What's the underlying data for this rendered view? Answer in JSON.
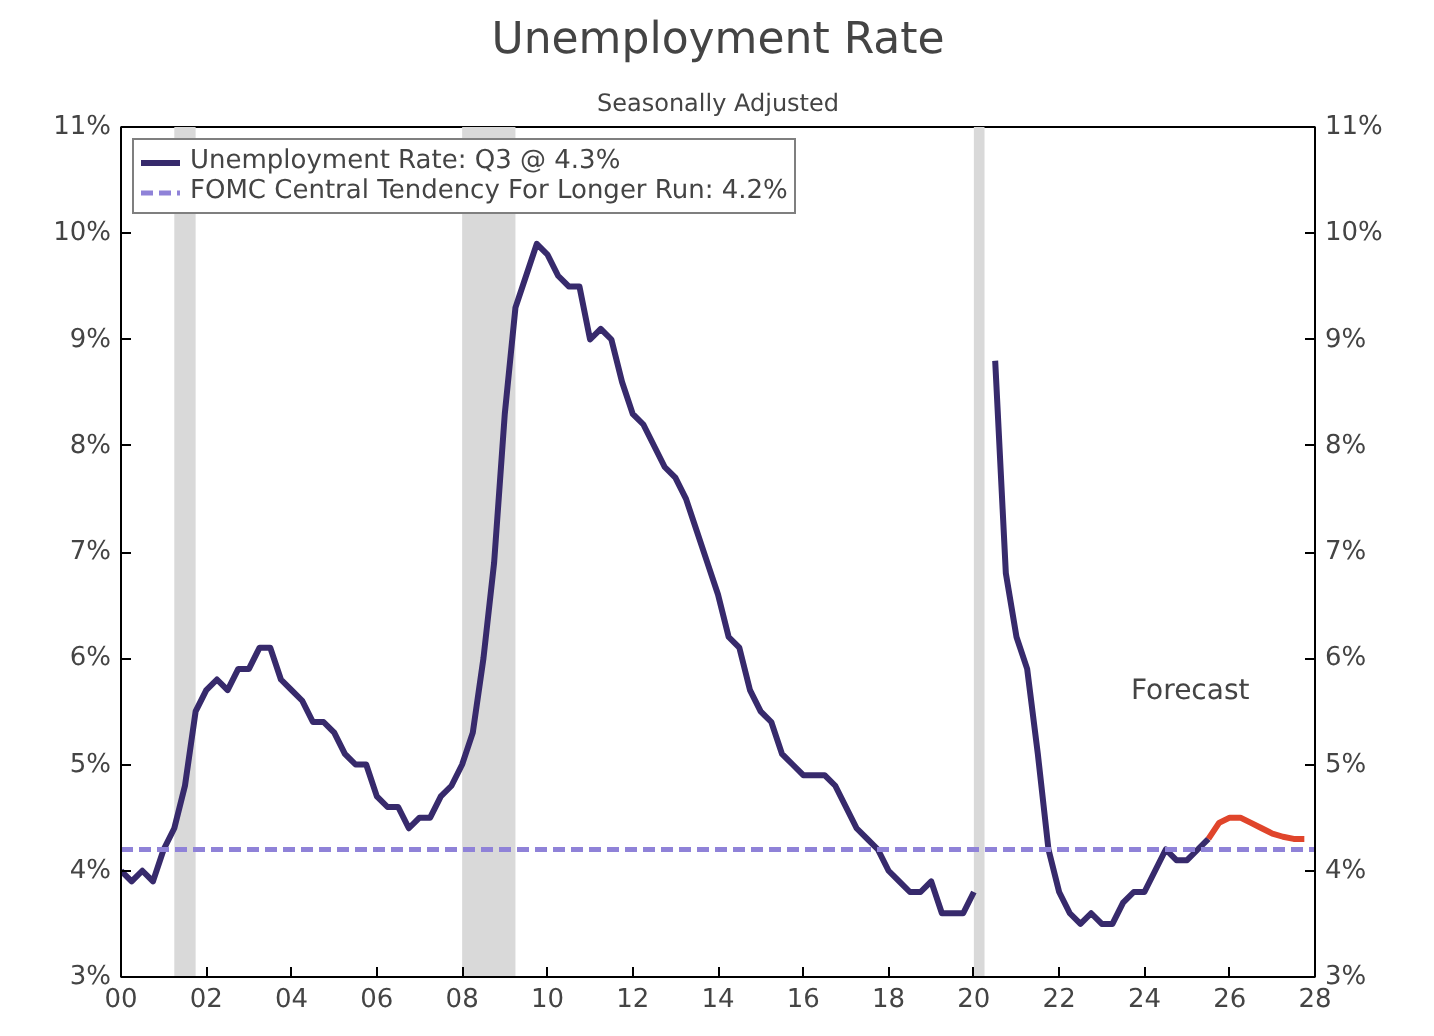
{
  "chart_data": {
    "type": "line",
    "title": "Unemployment Rate",
    "subtitle": "Seasonally Adjusted",
    "xlim": [
      0,
      28
    ],
    "xticks": [
      {
        "value": 0,
        "label": "00"
      },
      {
        "value": 2,
        "label": "02"
      },
      {
        "value": 4,
        "label": "04"
      },
      {
        "value": 6,
        "label": "06"
      },
      {
        "value": 8,
        "label": "08"
      },
      {
        "value": 10,
        "label": "10"
      },
      {
        "value": 12,
        "label": "12"
      },
      {
        "value": 14,
        "label": "14"
      },
      {
        "value": 16,
        "label": "16"
      },
      {
        "value": 18,
        "label": "18"
      },
      {
        "value": 20,
        "label": "20"
      },
      {
        "value": 22,
        "label": "22"
      },
      {
        "value": 24,
        "label": "24"
      },
      {
        "value": 26,
        "label": "26"
      },
      {
        "value": 28,
        "label": "28"
      }
    ],
    "ylim": [
      3,
      11
    ],
    "yticks": [
      {
        "value": 3,
        "label": "3%"
      },
      {
        "value": 4,
        "label": "4%"
      },
      {
        "value": 5,
        "label": "5%"
      },
      {
        "value": 6,
        "label": "6%"
      },
      {
        "value": 7,
        "label": "7%"
      },
      {
        "value": 8,
        "label": "8%"
      },
      {
        "value": 9,
        "label": "9%"
      },
      {
        "value": 10,
        "label": "10%"
      },
      {
        "value": 11,
        "label": "11%"
      }
    ],
    "y2lim": [
      3,
      11
    ],
    "y2ticks": [
      {
        "value": 3,
        "label": "3%"
      },
      {
        "value": 4,
        "label": "4%"
      },
      {
        "value": 5,
        "label": "5%"
      },
      {
        "value": 6,
        "label": "6%"
      },
      {
        "value": 7,
        "label": "7%"
      },
      {
        "value": 8,
        "label": "8%"
      },
      {
        "value": 9,
        "label": "9%"
      },
      {
        "value": 10,
        "label": "10%"
      },
      {
        "value": 11,
        "label": "11%"
      }
    ],
    "grid": false,
    "legend": "top left",
    "line_style": "solid",
    "marker": "none",
    "series": [
      {
        "name": "Unemployment Rate: Q3 @ 4.3%",
        "color": "#372a6c",
        "x": [
          0,
          0.25,
          0.5,
          0.75,
          1,
          1.25,
          1.5,
          1.75,
          2,
          2.25,
          2.5,
          2.75,
          3,
          3.25,
          3.5,
          3.75,
          4,
          4.25,
          4.5,
          4.75,
          5,
          5.25,
          5.5,
          5.75,
          6,
          6.25,
          6.5,
          6.75,
          7,
          7.25,
          7.5,
          7.75,
          8,
          8.25,
          8.5,
          8.75,
          9,
          9.25,
          9.5,
          9.75,
          10,
          10.25,
          10.5,
          10.75,
          11,
          11.25,
          11.5,
          11.75,
          12,
          12.25,
          12.5,
          12.75,
          13,
          13.25,
          13.5,
          13.75,
          14,
          14.25,
          14.5,
          14.75,
          15,
          15.25,
          15.5,
          15.75,
          16,
          16.25,
          16.5,
          16.75,
          17,
          17.25,
          17.5,
          17.75,
          18,
          18.25,
          18.5,
          18.75,
          19,
          19.25,
          19.5,
          19.75,
          20,
          20.25,
          20.5,
          20.75,
          21,
          21.25,
          21.5,
          21.75,
          22,
          22.25,
          22.5,
          22.75,
          23,
          23.25,
          23.5,
          23.75,
          24,
          24.25,
          24.5,
          24.75,
          25,
          25.25,
          25.5
        ],
        "values": [
          4.0,
          3.9,
          4.0,
          3.9,
          4.2,
          4.4,
          4.8,
          5.5,
          5.7,
          5.8,
          5.7,
          5.9,
          5.9,
          6.1,
          6.1,
          5.8,
          5.7,
          5.6,
          5.4,
          5.4,
          5.3,
          5.1,
          5.0,
          5.0,
          4.7,
          4.6,
          4.6,
          4.4,
          4.5,
          4.5,
          4.7,
          4.8,
          5.0,
          5.3,
          6.0,
          6.9,
          8.3,
          9.3,
          9.6,
          9.9,
          9.8,
          9.6,
          9.5,
          9.5,
          9.0,
          9.1,
          9.0,
          8.6,
          8.3,
          8.2,
          8.0,
          7.8,
          7.7,
          7.5,
          7.2,
          6.9,
          6.6,
          6.2,
          6.1,
          5.7,
          5.5,
          5.4,
          5.1,
          5.0,
          4.9,
          4.9,
          4.9,
          4.8,
          4.6,
          4.4,
          4.3,
          4.2,
          4.0,
          3.9,
          3.8,
          3.8,
          3.9,
          3.6,
          3.6,
          3.6,
          3.8,
          null,
          8.8,
          6.8,
          6.2,
          5.9,
          5.1,
          4.2,
          3.8,
          3.6,
          3.5,
          3.6,
          3.5,
          3.5,
          3.7,
          3.8,
          3.8,
          4.0,
          4.2,
          4.1,
          4.1,
          4.2,
          4.3
        ]
      },
      {
        "color": "#e0452b",
        "x": [
          25.5,
          25.75,
          26,
          26.25,
          26.5,
          26.75,
          27,
          27.25,
          27.5,
          27.75
        ],
        "values": [
          4.3,
          4.45,
          4.5,
          4.5,
          4.45,
          4.4,
          4.35,
          4.32,
          4.3,
          4.3
        ]
      }
    ],
    "ref_lines": [
      {
        "axis": "y",
        "value": 4.2,
        "label": "FOMC Central Tendency For Longer Run: 4.2%",
        "color": "#8f82d8",
        "line_style": "dashed"
      }
    ],
    "bands": [
      {
        "axis": "x",
        "from": 1.25,
        "to": 1.75,
        "color": "#d9d9d9"
      },
      {
        "axis": "x",
        "from": 8,
        "to": 9.25,
        "color": "#d9d9d9"
      },
      {
        "axis": "x",
        "from": 20,
        "to": 20.25,
        "color": "#d9d9d9"
      }
    ],
    "annotations": [
      "Forecast"
    ]
  }
}
